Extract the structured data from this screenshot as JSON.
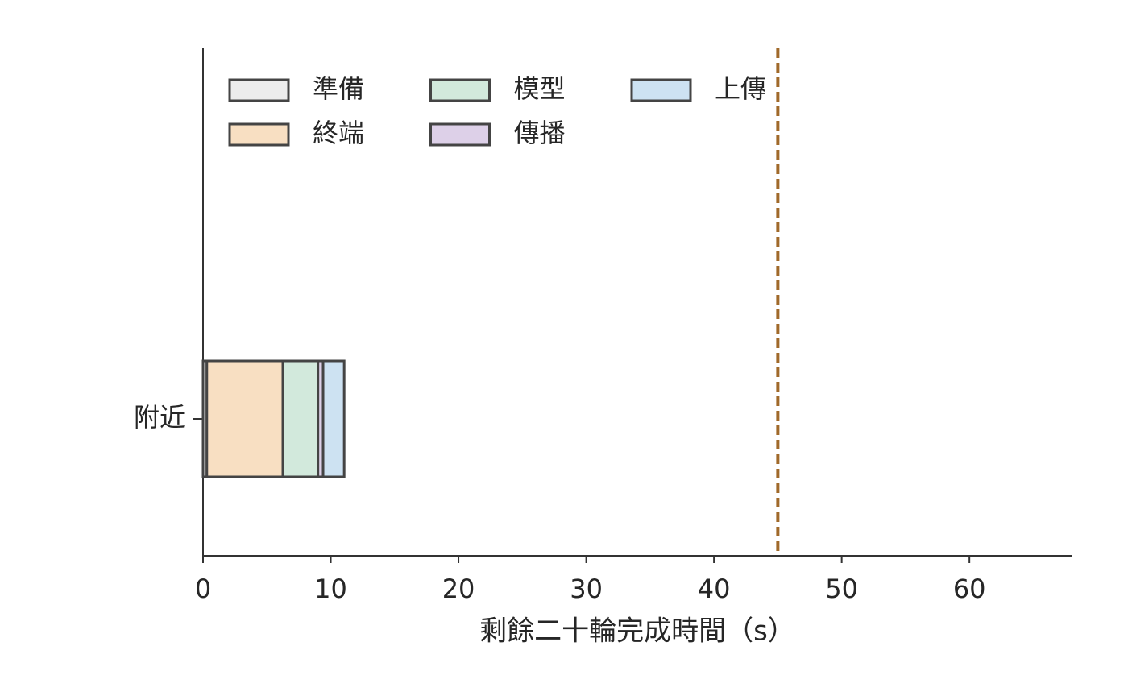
{
  "chart_data": {
    "type": "stacked_barh",
    "xlabel": "剩餘二十輪完成時間（s）",
    "categories": [
      "附近"
    ],
    "series": [
      {
        "name": "準備",
        "color": "#ececec",
        "values": [
          0.3
        ]
      },
      {
        "name": "終端",
        "color": "#f8dfc2",
        "values": [
          5.95
        ]
      },
      {
        "name": "模型",
        "color": "#d2e9dc",
        "values": [
          2.75
        ]
      },
      {
        "name": "傳播",
        "color": "#ddd0e8",
        "values": [
          0.4
        ]
      },
      {
        "name": "上傳",
        "color": "#cde2f2",
        "values": [
          1.65
        ]
      }
    ],
    "xlim": [
      0,
      68
    ],
    "xticks": [
      0,
      10,
      20,
      30,
      40,
      50,
      60
    ],
    "reference_line": {
      "value": 45,
      "color": "#a0692a"
    },
    "edge_color": "#444444",
    "legend": "upper left",
    "legend_columns": 3
  }
}
